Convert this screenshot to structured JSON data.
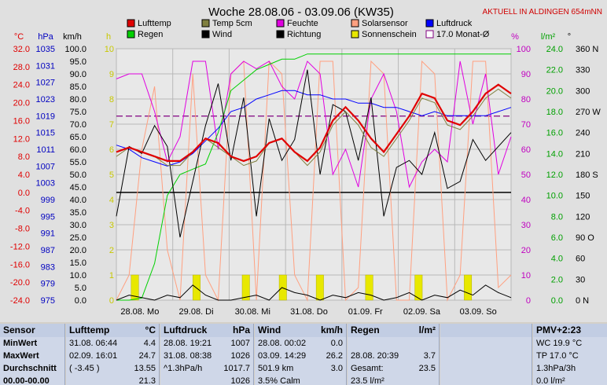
{
  "chart_data": {
    "type": "line",
    "title": "Woche 28.08.06 - 03.09.06 (KW35)",
    "corner_note": "AKTUELL IN ALDINGEN 654mNN",
    "x_labels": [
      "28.08. Mo",
      "29.08. Di",
      "30.08. Mi",
      "31.08. Do",
      "01.09. Fr",
      "02.09. Sa",
      "03.09. So"
    ],
    "axes": {
      "celsius": {
        "unit": "°C",
        "color": "#e00000",
        "ticks": [
          "32.0",
          "28.0",
          "24.0",
          "20.0",
          "16.0",
          "12.0",
          "8.0",
          "4.0",
          "0.0",
          "-4.0",
          "-8.0",
          "-12.0",
          "-16.0",
          "-20.0",
          "-24.0"
        ]
      },
      "hpa": {
        "unit": "hPa",
        "color": "#0000c0",
        "ticks": [
          "1035",
          "1031",
          "1027",
          "1023",
          "1019",
          "1015",
          "1011",
          "1007",
          "1003",
          "999",
          "995",
          "991",
          "987",
          "983",
          "979",
          "975"
        ]
      },
      "kmh": {
        "unit": "km/h",
        "color": "#000000",
        "ticks": [
          "100.0",
          "95.0",
          "90.0",
          "85.0",
          "80.0",
          "75.0",
          "70.0",
          "65.0",
          "60.0",
          "55.0",
          "50.0",
          "45.0",
          "40.0",
          "35.0",
          "30.0",
          "25.0",
          "20.0",
          "15.0",
          "10.0",
          "5.0",
          "0.0"
        ]
      },
      "h": {
        "unit": "h",
        "color": "#c8c800",
        "ticks": [
          "10",
          "9",
          "8",
          "7",
          "6",
          "5",
          "4",
          "3",
          "2",
          "1",
          "0"
        ]
      },
      "percent": {
        "unit": "%",
        "color": "#c000c0",
        "ticks": [
          "100",
          "90",
          "80",
          "70",
          "60",
          "50",
          "40",
          "30",
          "20",
          "10",
          "0"
        ]
      },
      "lm2": {
        "unit": "l/m²",
        "color": "#00a000",
        "ticks": [
          "24.0",
          "22.0",
          "20.0",
          "18.0",
          "16.0",
          "14.0",
          "12.0",
          "10.0",
          "8.0",
          "6.0",
          "4.0",
          "2.0",
          "0.0"
        ]
      },
      "deg": {
        "unit": "°",
        "color": "#000000",
        "ticks": [
          "360 N",
          "330",
          "300",
          "270 W",
          "240",
          "210",
          "180 S",
          "150",
          "120",
          "90 O",
          "60",
          "30",
          "0 N"
        ]
      }
    },
    "legend": [
      {
        "name": "Lufttemp",
        "color": "#e00000"
      },
      {
        "name": "Temp 5cm",
        "color": "#808040"
      },
      {
        "name": "Feuchte",
        "color": "#e000e0"
      },
      {
        "name": "Solarsensor",
        "color": "#ffa080"
      },
      {
        "name": "Luftdruck",
        "color": "#0000ff"
      },
      {
        "name": "Regen",
        "color": "#00d000"
      },
      {
        "name": "Wind",
        "color": "#000000"
      },
      {
        "name": "Richtung",
        "color": "#000000"
      },
      {
        "name": "Sonnenschein",
        "color": "#e8e800"
      },
      {
        "name": "17.0 Monat-Ø",
        "color": "#800080"
      }
    ],
    "monthly_avg_c": 17.0,
    "series": [
      {
        "name": "Lufttemp",
        "unit": "°C",
        "values": [
          9,
          10,
          9,
          8,
          7,
          7,
          9,
          12,
          11,
          8,
          7,
          8,
          11,
          12,
          9,
          7,
          10,
          16,
          19,
          16,
          12,
          9,
          13,
          17,
          22,
          21,
          16,
          15,
          18,
          22,
          24,
          22
        ]
      },
      {
        "name": "Temp 5cm",
        "unit": "°C",
        "values": [
          8,
          10,
          9,
          8,
          6,
          6,
          9,
          12,
          10,
          8,
          6,
          7,
          11,
          12,
          9,
          6,
          9,
          15,
          18,
          15,
          10,
          8,
          12,
          16,
          21,
          20,
          15,
          14,
          17,
          21,
          23,
          21
        ]
      },
      {
        "name": "Feuchte",
        "unit": "%",
        "values": [
          88,
          90,
          90,
          75,
          55,
          65,
          95,
          95,
          60,
          90,
          95,
          92,
          95,
          85,
          80,
          95,
          90,
          50,
          60,
          45,
          80,
          90,
          75,
          45,
          55,
          60,
          55,
          95,
          70,
          90,
          50,
          65
        ]
      },
      {
        "name": "Luftdruck",
        "unit": "hPa",
        "values": [
          1012,
          1011,
          1009,
          1008,
          1007,
          1008,
          1010,
          1013,
          1016,
          1020,
          1021,
          1023,
          1024,
          1025,
          1025,
          1024,
          1024,
          1023,
          1023,
          1022,
          1022,
          1021,
          1021,
          1020,
          1019,
          1020,
          1019,
          1019,
          1019,
          1019,
          1020,
          1021
        ]
      },
      {
        "name": "Regen",
        "unit": "l/m²",
        "values": [
          0,
          0,
          0.2,
          3.5,
          10,
          12,
          12.5,
          13,
          16,
          20,
          21,
          22,
          22.5,
          23,
          23,
          23.5,
          23.5,
          23.5,
          23.5,
          23.5,
          23.5,
          23.5,
          23.5,
          23.5,
          23.5,
          23.5,
          23.5,
          23.5,
          23.5,
          23.5,
          23.5,
          23.5
        ]
      },
      {
        "name": "Wind",
        "unit": "km/h",
        "values": [
          0,
          2,
          1,
          0,
          2,
          1,
          6,
          2,
          0,
          0,
          1,
          2,
          0,
          5,
          3,
          2,
          0,
          2,
          1,
          3,
          2,
          0,
          1,
          3,
          0,
          2,
          1,
          4,
          2,
          6,
          3,
          1
        ]
      },
      {
        "name": "Richtung",
        "unit": "°",
        "values": [
          120,
          220,
          210,
          250,
          220,
          90,
          170,
          250,
          310,
          200,
          290,
          120,
          260,
          200,
          230,
          330,
          180,
          280,
          270,
          200,
          290,
          120,
          190,
          200,
          180,
          240,
          160,
          170,
          230,
          200,
          220,
          240
        ]
      },
      {
        "name": "Solarsensor",
        "unit": "%",
        "values": [
          0,
          10,
          60,
          85,
          20,
          0,
          90,
          10,
          0,
          90,
          95,
          0,
          95,
          90,
          10,
          0,
          95,
          95,
          0,
          5,
          95,
          90,
          0,
          0,
          95,
          90,
          0,
          10,
          95,
          95,
          5,
          10
        ]
      }
    ],
    "sunshine_h": [
      0,
      1,
      0,
      0,
      0,
      0,
      1,
      0,
      0,
      0,
      1,
      0,
      0,
      1,
      0,
      0,
      1,
      0,
      0,
      0,
      1,
      0,
      0,
      0,
      1,
      0,
      0,
      0,
      1,
      0,
      0,
      0
    ]
  },
  "stats": {
    "sensor": {
      "header": "Sensor",
      "rows": [
        "MinWert",
        "MaxWert",
        "Durchschnitt",
        "00.00-00.00"
      ]
    },
    "lufttemp": {
      "header": "Lufttemp",
      "unit": "°C",
      "rows": [
        {
          "left": "31.08.  06:44",
          "right": "4.4"
        },
        {
          "left": "02.09.  16:01",
          "right": "24.7"
        },
        {
          "left": "( -3.45 )",
          "right": "13.55"
        },
        {
          "left": "",
          "right": "21.3"
        }
      ]
    },
    "luftdruck": {
      "header": "Luftdruck",
      "unit": "hPa",
      "rows": [
        {
          "left": "28.08.  19:21",
          "right": "1007"
        },
        {
          "left": "31.08.  08:38",
          "right": "1026"
        },
        {
          "left": "^1.3hPa/h",
          "right": "1017.7"
        },
        {
          "left": "",
          "right": "1026"
        }
      ]
    },
    "wind": {
      "header": "Wind",
      "unit": "km/h",
      "rows": [
        {
          "left": "28.08.  00:02",
          "right": "0.0"
        },
        {
          "left": "03.09.  14:29",
          "right": "26.2"
        },
        {
          "left": "501.9 km",
          "right": "3.0"
        },
        {
          "left": "3.5% Calm",
          "right": ""
        }
      ]
    },
    "regen": {
      "header": "Regen",
      "unit": "l/m²",
      "rows": [
        {
          "left": "",
          "right": ""
        },
        {
          "left": "28.08.  20:39",
          "right": "3.7"
        },
        {
          "left": "Gesamt:",
          "right": "23.5"
        },
        {
          "left": "23.5 l/m²",
          "right": ""
        }
      ]
    },
    "pmv": {
      "header": "PMV+2:23",
      "rows": [
        "WC 19.9 °C",
        "TP 17.0 °C",
        "1.3hPa/3h",
        "0.0 l/m²"
      ]
    }
  }
}
